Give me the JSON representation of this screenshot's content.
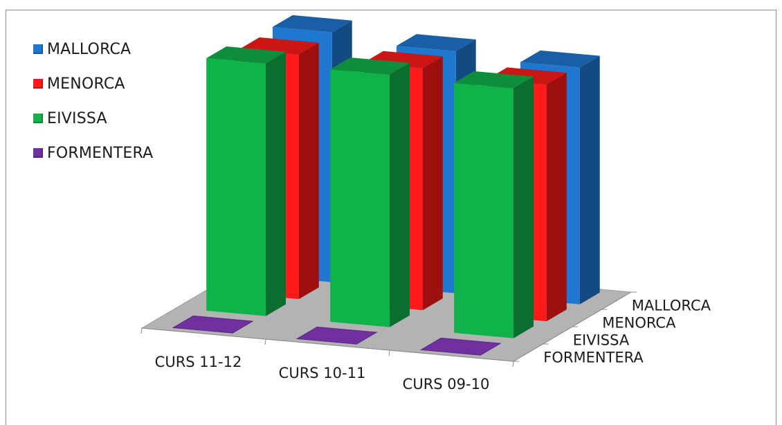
{
  "chart_data": {
    "type": "bar",
    "subtype": "3d-column",
    "title": "",
    "categories": [
      "CURS 11-12",
      "CURS 10-11",
      "CURS 09-10"
    ],
    "series": [
      {
        "name": "MALLORCA",
        "values": [
          95,
          92,
          90
        ],
        "color": "#1f77d0"
      },
      {
        "name": "MENORCA",
        "values": [
          93,
          92,
          90
        ],
        "color": "#ff1a1a"
      },
      {
        "name": "EIVISSA",
        "values": [
          96,
          96,
          95
        ],
        "color": "#10b24a"
      },
      {
        "name": "FORMENTERA",
        "values": [
          0,
          0,
          0
        ],
        "color": "#7030a0"
      }
    ],
    "depth_axis_labels": [
      "MALLORCA",
      "MENORCA",
      "EIVISSA",
      "FORMENTERA"
    ],
    "legend_position": "top-left",
    "grid": false,
    "floor_color": "#b3b3b3"
  }
}
